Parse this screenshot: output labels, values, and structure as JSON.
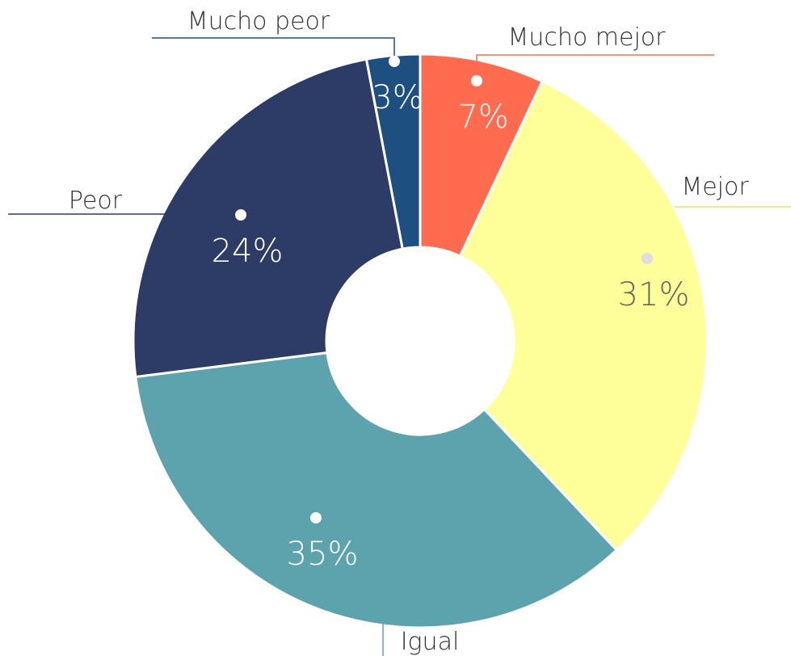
{
  "chart_data": {
    "type": "donut",
    "categories": [
      "Mucho mejor",
      "Mejor",
      "Igual",
      "Peor",
      "Mucho peor"
    ],
    "values": [
      7,
      31,
      35,
      24,
      3
    ],
    "value_labels": [
      "7%",
      "31%",
      "35%",
      "24%",
      "3%"
    ],
    "colors": [
      "#ff6b4f",
      "#ffff99",
      "#5ca3ae",
      "#2d3c66",
      "#1d4f80"
    ]
  }
}
